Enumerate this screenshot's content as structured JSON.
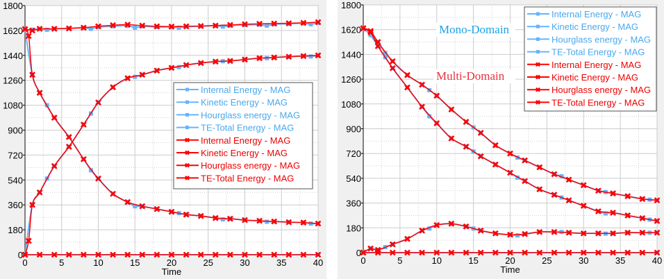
{
  "chart_data": [
    {
      "type": "line",
      "title": "",
      "xlabel": "Time",
      "ylabel": "",
      "xlim": [
        0,
        40
      ],
      "ylim": [
        0,
        1800
      ],
      "xticks": [
        0,
        5,
        10,
        15,
        20,
        25,
        30,
        35,
        40
      ],
      "yticks": [
        0,
        180,
        360,
        540,
        720,
        900,
        1080,
        1260,
        1440,
        1620,
        1800
      ],
      "grid": true,
      "legend_position": "center-right",
      "series": [
        {
          "name": "Internal Energy - MAG",
          "group": "mono",
          "color": "#66b3ff",
          "x": [
            0,
            1,
            2,
            3,
            4,
            6,
            8,
            9,
            10,
            12,
            14,
            15,
            16,
            18,
            20,
            21,
            22,
            24,
            26,
            27,
            28,
            30,
            32,
            33,
            34,
            36,
            38,
            39,
            40
          ],
          "y": [
            0,
            360,
            450,
            550,
            640,
            780,
            940,
            1020,
            1100,
            1210,
            1275,
            1285,
            1300,
            1330,
            1350,
            1355,
            1370,
            1385,
            1395,
            1398,
            1400,
            1410,
            1420,
            1420,
            1425,
            1430,
            1435,
            1432,
            1440
          ]
        },
        {
          "name": "Kinetic Energy - MAG",
          "group": "mono",
          "color": "#66b3ff",
          "x": [
            0,
            1,
            2,
            3,
            4,
            6,
            8,
            9,
            10,
            12,
            14,
            15,
            16,
            18,
            20,
            21,
            22,
            24,
            26,
            27,
            28,
            30,
            32,
            33,
            34,
            36,
            38,
            39,
            40
          ],
          "y": [
            1630,
            1300,
            1170,
            1080,
            990,
            850,
            690,
            610,
            550,
            440,
            380,
            350,
            350,
            330,
            310,
            300,
            290,
            280,
            265,
            255,
            260,
            250,
            245,
            238,
            240,
            235,
            232,
            225,
            225
          ]
        },
        {
          "name": "Hourglass energy - MAG",
          "group": "mono",
          "color": "#66b3ff",
          "x": [
            0,
            40
          ],
          "y": [
            0,
            0
          ]
        },
        {
          "name": "TE-Total Energy - MAG",
          "group": "mono",
          "color": "#66b3ff",
          "x": [
            0,
            1,
            2,
            3,
            4,
            6,
            8,
            9,
            10,
            12,
            14,
            15,
            16,
            18,
            20,
            21,
            22,
            24,
            26,
            27,
            28,
            30,
            32,
            33,
            34,
            36,
            38,
            39,
            40
          ],
          "y": [
            1630,
            1625,
            1632,
            1625,
            1632,
            1635,
            1640,
            1632,
            1645,
            1650,
            1655,
            1640,
            1650,
            1645,
            1645,
            1640,
            1648,
            1650,
            1655,
            1648,
            1655,
            1660,
            1662,
            1655,
            1665,
            1668,
            1672,
            1665,
            1675
          ]
        },
        {
          "name": "Internal Energy - MAG",
          "group": "multi",
          "color": "#ff0000",
          "x": [
            0,
            0.5,
            1,
            2,
            4,
            6,
            8,
            10,
            12,
            14,
            16,
            18,
            20,
            22,
            24,
            26,
            28,
            30,
            32,
            34,
            36,
            38,
            40
          ],
          "y": [
            0,
            100,
            360,
            450,
            640,
            780,
            940,
            1100,
            1210,
            1275,
            1300,
            1330,
            1350,
            1370,
            1385,
            1395,
            1400,
            1410,
            1420,
            1425,
            1430,
            1435,
            1440
          ]
        },
        {
          "name": "Kinetic Energy - MAG",
          "group": "multi",
          "color": "#ff0000",
          "x": [
            0,
            0.5,
            1,
            2,
            4,
            6,
            8,
            10,
            12,
            14,
            16,
            18,
            20,
            22,
            24,
            26,
            28,
            30,
            32,
            34,
            36,
            38,
            40
          ],
          "y": [
            1630,
            1580,
            1300,
            1170,
            990,
            850,
            690,
            550,
            440,
            380,
            350,
            330,
            310,
            290,
            280,
            265,
            260,
            250,
            245,
            240,
            235,
            232,
            225
          ]
        },
        {
          "name": "Hourglass energy - MAG",
          "group": "multi",
          "color": "#ff0000",
          "x": [
            0,
            2,
            4,
            6,
            8,
            10,
            12,
            14,
            16,
            18,
            20,
            22,
            24,
            26,
            28,
            30,
            32,
            34,
            36,
            38,
            40
          ],
          "y": [
            0,
            0,
            0,
            0,
            0,
            0,
            0,
            0,
            0,
            0,
            0,
            0,
            0,
            0,
            0,
            0,
            0,
            0,
            0,
            0,
            0
          ]
        },
        {
          "name": "TE-Total Energy - MAG",
          "group": "multi",
          "color": "#ff0000",
          "x": [
            0,
            1,
            2,
            4,
            6,
            8,
            10,
            12,
            14,
            16,
            18,
            20,
            22,
            24,
            26,
            28,
            30,
            32,
            34,
            36,
            38,
            40
          ],
          "y": [
            1630,
            1620,
            1632,
            1632,
            1635,
            1640,
            1650,
            1658,
            1662,
            1655,
            1650,
            1648,
            1650,
            1652,
            1655,
            1660,
            1665,
            1668,
            1670,
            1672,
            1675,
            1680
          ]
        }
      ],
      "legend": [
        {
          "label": "Internal Energy - MAG",
          "color": "#66b3ff",
          "marker": "square"
        },
        {
          "label": "Kinetic Energy - MAG",
          "color": "#66b3ff",
          "marker": "square"
        },
        {
          "label": "Hourglass energy - MAG",
          "color": "#66b3ff",
          "marker": "square"
        },
        {
          "label": "TE-Total Energy - MAG",
          "color": "#66b3ff",
          "marker": "square"
        },
        {
          "label": "Internal Energy - MAG",
          "color": "#ff0000",
          "marker": "x"
        },
        {
          "label": "Kinetic Energy - MAG",
          "color": "#ff0000",
          "marker": "x"
        },
        {
          "label": "Hourglass energy - MAG",
          "color": "#ff0000",
          "marker": "x"
        },
        {
          "label": "TE-Total Energy - MAG",
          "color": "#ff0000",
          "marker": "x"
        }
      ]
    },
    {
      "type": "line",
      "title": "",
      "xlabel": "Time",
      "ylabel": "",
      "xlim": [
        0,
        40
      ],
      "ylim": [
        0,
        1800
      ],
      "xticks": [
        0,
        5,
        10,
        15,
        20,
        25,
        30,
        35,
        40
      ],
      "yticks": [
        0,
        180,
        360,
        540,
        720,
        900,
        1080,
        1260,
        1440,
        1620,
        1800
      ],
      "grid": true,
      "legend_position": "top-right",
      "annotations": [
        {
          "text": "Mono-Domain",
          "color": "#1aa3e6",
          "points_to": "top curve (~1620)"
        },
        {
          "text": "Multi-Domain",
          "color": "#e8323c",
          "points_to": "~1260"
        }
      ],
      "series": [
        {
          "name": "Internal Energy - MAG",
          "group": "mono",
          "color": "#66b3ff",
          "x": [
            0,
            1,
            2,
            3,
            4,
            6,
            8,
            9,
            10,
            12,
            14,
            15,
            16,
            18,
            20,
            21,
            22,
            24,
            26,
            27,
            28,
            30,
            32,
            33,
            34,
            36,
            38,
            39,
            40
          ],
          "y": [
            1630,
            1580,
            1500,
            1420,
            1340,
            1200,
            1060,
            990,
            940,
            830,
            770,
            735,
            700,
            640,
            580,
            545,
            520,
            460,
            420,
            400,
            380,
            340,
            300,
            285,
            290,
            270,
            250,
            240,
            230
          ]
        },
        {
          "name": "Kinetic Energy - MAG",
          "group": "mono",
          "color": "#66b3ff",
          "x": [
            0,
            1,
            2,
            3,
            4,
            6,
            8,
            9,
            10,
            12,
            14,
            15,
            16,
            18,
            20,
            21,
            22,
            24,
            26,
            27,
            28,
            30,
            32,
            33,
            34,
            36,
            38,
            39,
            40
          ],
          "y": [
            0,
            30,
            20,
            40,
            60,
            100,
            160,
            175,
            200,
            210,
            190,
            175,
            160,
            140,
            130,
            125,
            135,
            150,
            150,
            150,
            145,
            140,
            140,
            138,
            140,
            145,
            145,
            145,
            145
          ]
        },
        {
          "name": "Hourglass energy - MAG",
          "group": "mono",
          "color": "#66b3ff",
          "x": [
            0,
            40
          ],
          "y": [
            0,
            0
          ]
        },
        {
          "name": "TE-Total Energy - MAG",
          "group": "mono",
          "color": "#66b3ff",
          "x": [
            0,
            1,
            2,
            3,
            4,
            6,
            8,
            9,
            10,
            12,
            14,
            15,
            16,
            18,
            20,
            21,
            22,
            24,
            26,
            27,
            28,
            30,
            32,
            33,
            34,
            36,
            38,
            39,
            40
          ],
          "y": [
            1630,
            1600,
            1530,
            1450,
            1390,
            1290,
            1220,
            1180,
            1140,
            1040,
            950,
            910,
            870,
            780,
            720,
            690,
            670,
            620,
            570,
            555,
            530,
            490,
            450,
            440,
            430,
            410,
            390,
            385,
            380
          ]
        },
        {
          "name": "Internal Energy - MAG",
          "group": "multi",
          "color": "#ff0000",
          "x": [
            0,
            1,
            2,
            4,
            6,
            8,
            10,
            12,
            14,
            16,
            18,
            20,
            22,
            24,
            26,
            28,
            30,
            32,
            34,
            36,
            38,
            40
          ],
          "y": [
            1630,
            1600,
            1500,
            1340,
            1200,
            1060,
            940,
            830,
            770,
            700,
            640,
            580,
            520,
            460,
            420,
            380,
            340,
            300,
            290,
            270,
            250,
            230
          ]
        },
        {
          "name": "Kinetic Energy - MAG",
          "group": "multi",
          "color": "#ff0000",
          "x": [
            0,
            1,
            2,
            4,
            6,
            8,
            10,
            12,
            14,
            16,
            18,
            20,
            22,
            24,
            26,
            28,
            30,
            32,
            34,
            36,
            38,
            40
          ],
          "y": [
            0,
            30,
            20,
            60,
            100,
            160,
            200,
            210,
            190,
            160,
            140,
            130,
            135,
            150,
            150,
            145,
            140,
            140,
            140,
            145,
            145,
            145
          ]
        },
        {
          "name": "Hourglass energy - MAG",
          "group": "multi",
          "color": "#ff0000",
          "x": [
            0,
            2,
            4,
            6,
            8,
            10,
            12,
            14,
            16,
            18,
            20,
            22,
            24,
            26,
            28,
            30,
            32,
            34,
            36,
            38,
            40
          ],
          "y": [
            0,
            0,
            0,
            0,
            0,
            0,
            0,
            0,
            0,
            0,
            0,
            0,
            0,
            0,
            0,
            0,
            0,
            0,
            0,
            0,
            0
          ]
        },
        {
          "name": "TE-Total Energy - MAG",
          "group": "multi",
          "color": "#ff0000",
          "x": [
            0,
            1,
            2,
            4,
            6,
            8,
            10,
            12,
            14,
            16,
            18,
            20,
            22,
            24,
            26,
            28,
            30,
            32,
            34,
            36,
            38,
            40
          ],
          "y": [
            1630,
            1610,
            1530,
            1390,
            1290,
            1220,
            1140,
            1040,
            950,
            870,
            780,
            720,
            670,
            620,
            570,
            530,
            490,
            450,
            430,
            410,
            390,
            380
          ]
        }
      ],
      "legend": [
        {
          "label": "Internal Energy - MAG",
          "color": "#66b3ff",
          "marker": "square"
        },
        {
          "label": "Kinetic Energy - MAG",
          "color": "#66b3ff",
          "marker": "square"
        },
        {
          "label": "Hourglass energy - MAG",
          "color": "#66b3ff",
          "marker": "square"
        },
        {
          "label": "TE-Total Energy - MAG",
          "color": "#66b3ff",
          "marker": "square"
        },
        {
          "label": "Internal Energy - MAG",
          "color": "#ff0000",
          "marker": "x"
        },
        {
          "label": "Kinetic Energy - MAG",
          "color": "#ff0000",
          "marker": "x"
        },
        {
          "label": "Hourglass energy - MAG",
          "color": "#ff0000",
          "marker": "x"
        },
        {
          "label": "TE-Total Energy - MAG",
          "color": "#ff0000",
          "marker": "x"
        }
      ]
    }
  ]
}
